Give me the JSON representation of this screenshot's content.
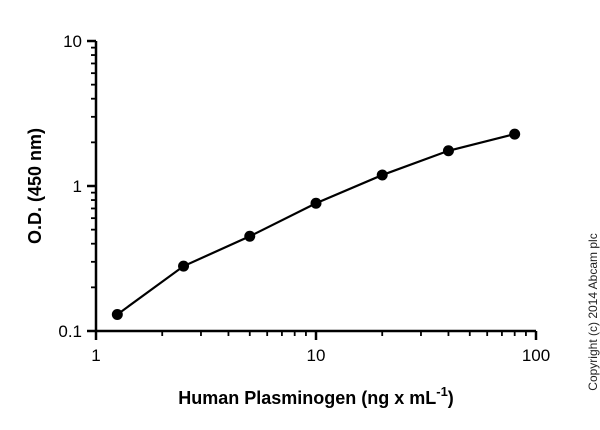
{
  "chart_data": {
    "type": "scatter",
    "xlabel": "Human Plasminogen (ng x mL",
    "xlabel_superscript": "-1",
    "xlabel_suffix": ")",
    "ylabel": "O.D. (450 nm)",
    "x_scale": "log",
    "y_scale": "log",
    "xlim": [
      1,
      100
    ],
    "ylim": [
      0.1,
      10
    ],
    "x_ticks": [
      1,
      10,
      100
    ],
    "x_tick_labels": [
      "1",
      "10",
      "100"
    ],
    "y_ticks": [
      0.1,
      1,
      10
    ],
    "y_tick_labels": [
      "0.1",
      "1",
      "10"
    ],
    "grid": false,
    "legend": "none",
    "line_connected": true,
    "marker_color": "#000000",
    "line_color": "#000000",
    "series": [
      {
        "x": [
          1.25,
          2.5,
          5,
          10,
          20,
          40,
          80
        ],
        "y": [
          0.13,
          0.28,
          0.45,
          0.76,
          1.19,
          1.75,
          2.28
        ]
      }
    ]
  },
  "copyright": "Copyright (c) 2014 Abcam plc"
}
